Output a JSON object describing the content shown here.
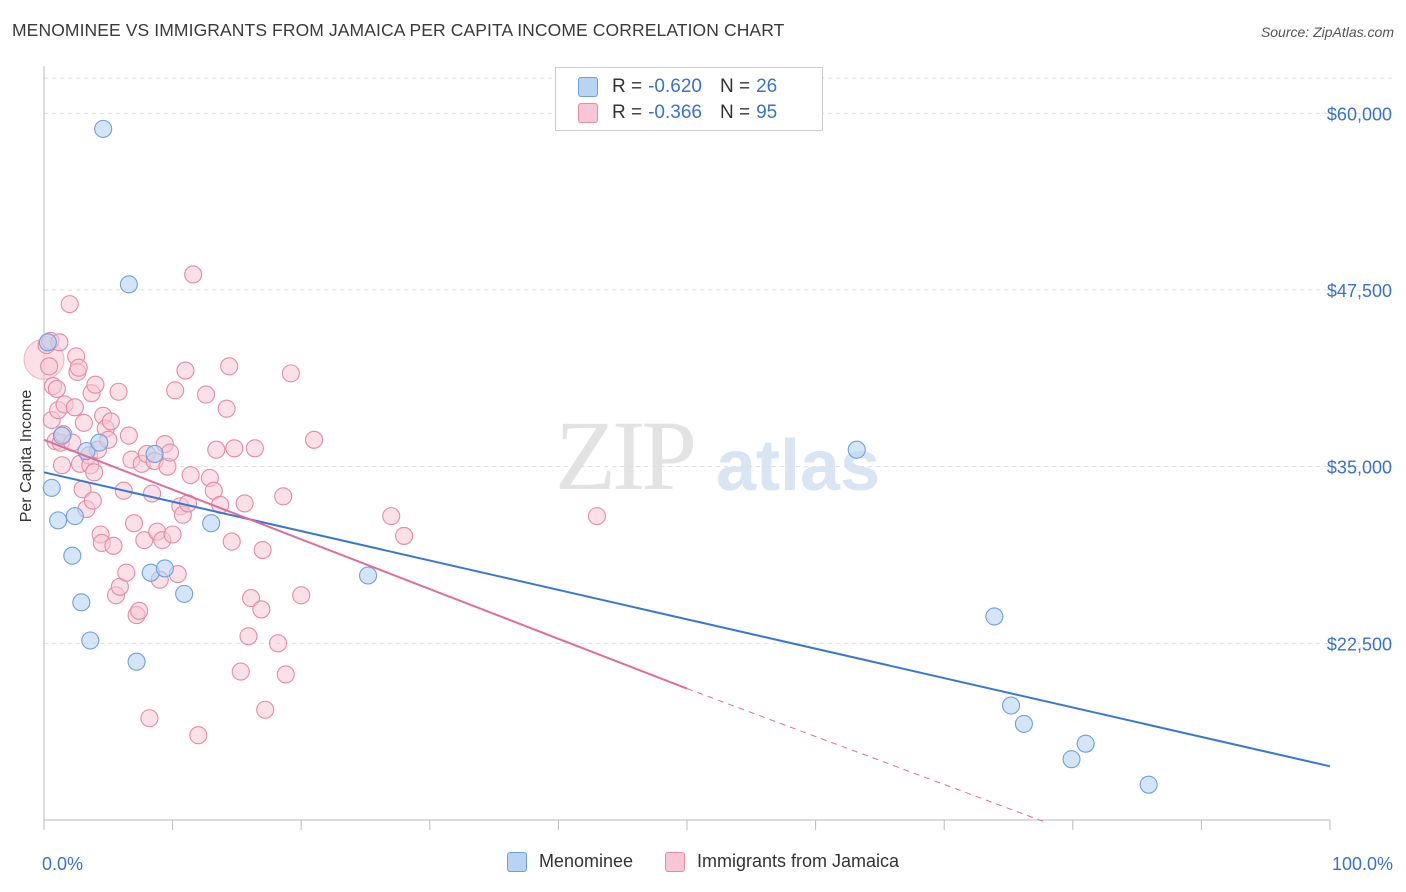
{
  "title": "MENOMINEE VS IMMIGRANTS FROM JAMAICA PER CAPITA INCOME CORRELATION CHART",
  "source": "Source: ZipAtlas.com",
  "watermark": {
    "zip": "ZIP",
    "atlas": "atlas"
  },
  "legend": {
    "rows": [
      {
        "r_label": "R =",
        "r_value": "-0.620",
        "n_label": "N =",
        "n_value": "26"
      },
      {
        "r_label": "R =",
        "r_value": "-0.366",
        "n_label": "N =",
        "n_value": "95"
      }
    ]
  },
  "bottom_legend": {
    "s1": "Menominee",
    "s2": "Immigrants from Jamaica"
  },
  "colors": {
    "blue_fill": "#b8d3f4",
    "blue_stroke": "#6fa0dc",
    "blue_line": "#3a78d0",
    "pink_fill": "#f8c6d4",
    "pink_stroke": "#e68aa6",
    "pink_line": "#e06d98",
    "tick_label": "#3b72c9",
    "grid": "#dddddd"
  },
  "chart_data": {
    "type": "scatter",
    "title": "MENOMINEE VS IMMIGRANTS FROM JAMAICA PER CAPITA INCOME CORRELATION CHART",
    "xlabel": "",
    "ylabel": "Per Capita Income",
    "xlim": [
      0,
      100
    ],
    "ylim": [
      10000,
      62500
    ],
    "x_tick_labels": [
      "0.0%",
      "100.0%"
    ],
    "y_ticks": [
      22500,
      35000,
      47500,
      60000
    ],
    "y_tick_labels": [
      "$22,500",
      "$35,000",
      "$47,500",
      "$60,000"
    ],
    "grid": true,
    "series": [
      {
        "name": "Menominee",
        "points": [
          [
            0.3,
            43800
          ],
          [
            0.6,
            33500
          ],
          [
            1.1,
            31200
          ],
          [
            1.4,
            37200
          ],
          [
            2.2,
            28700
          ],
          [
            2.4,
            31500
          ],
          [
            2.9,
            25400
          ],
          [
            3.3,
            36100
          ],
          [
            3.6,
            22700
          ],
          [
            4.3,
            36700
          ],
          [
            4.6,
            58900
          ],
          [
            6.6,
            47900
          ],
          [
            7.2,
            21200
          ],
          [
            8.3,
            27500
          ],
          [
            8.6,
            35900
          ],
          [
            9.4,
            27800
          ],
          [
            10.9,
            26000
          ],
          [
            13.0,
            31000
          ],
          [
            25.2,
            27300
          ],
          [
            63.2,
            36200
          ],
          [
            73.9,
            24400
          ],
          [
            75.2,
            18100
          ],
          [
            76.2,
            16800
          ],
          [
            79.9,
            14300
          ],
          [
            81.0,
            15400
          ],
          [
            85.9,
            12500
          ]
        ],
        "trend": [
          [
            0,
            34600
          ],
          [
            100,
            13800
          ]
        ]
      },
      {
        "name": "Immigrants from Jamaica",
        "points": [
          [
            0.2,
            43600
          ],
          [
            0.4,
            42100
          ],
          [
            0.5,
            43900
          ],
          [
            0.6,
            38300
          ],
          [
            0.7,
            40700
          ],
          [
            0.9,
            36800
          ],
          [
            1.0,
            40500
          ],
          [
            1.1,
            39000
          ],
          [
            1.2,
            43800
          ],
          [
            1.3,
            36700
          ],
          [
            1.4,
            35100
          ],
          [
            1.5,
            37300
          ],
          [
            1.6,
            39400
          ],
          [
            2.0,
            46500
          ],
          [
            2.2,
            36700
          ],
          [
            2.4,
            39200
          ],
          [
            2.5,
            42800
          ],
          [
            2.6,
            41700
          ],
          [
            2.7,
            42000
          ],
          [
            2.8,
            35200
          ],
          [
            3.0,
            33400
          ],
          [
            3.1,
            38100
          ],
          [
            3.3,
            32000
          ],
          [
            3.5,
            35800
          ],
          [
            3.6,
            35100
          ],
          [
            3.7,
            40200
          ],
          [
            3.8,
            32600
          ],
          [
            3.9,
            34600
          ],
          [
            4.0,
            40800
          ],
          [
            4.2,
            36200
          ],
          [
            4.4,
            30200
          ],
          [
            4.5,
            29600
          ],
          [
            4.6,
            38600
          ],
          [
            4.8,
            37700
          ],
          [
            5.0,
            36900
          ],
          [
            5.2,
            38200
          ],
          [
            5.4,
            29400
          ],
          [
            5.6,
            25900
          ],
          [
            5.8,
            40300
          ],
          [
            5.9,
            26500
          ],
          [
            6.2,
            33300
          ],
          [
            6.4,
            27500
          ],
          [
            6.6,
            37200
          ],
          [
            6.8,
            35500
          ],
          [
            7.0,
            31000
          ],
          [
            7.2,
            24500
          ],
          [
            7.4,
            24800
          ],
          [
            7.6,
            35200
          ],
          [
            7.8,
            29800
          ],
          [
            8.0,
            35900
          ],
          [
            8.2,
            17200
          ],
          [
            8.4,
            33100
          ],
          [
            8.6,
            35400
          ],
          [
            8.8,
            30400
          ],
          [
            9.0,
            27000
          ],
          [
            9.2,
            29800
          ],
          [
            9.4,
            36600
          ],
          [
            9.6,
            35000
          ],
          [
            9.8,
            36000
          ],
          [
            10.0,
            30200
          ],
          [
            10.2,
            40400
          ],
          [
            10.4,
            27400
          ],
          [
            10.6,
            32200
          ],
          [
            10.8,
            31600
          ],
          [
            11.0,
            41800
          ],
          [
            11.2,
            32400
          ],
          [
            11.4,
            34400
          ],
          [
            11.6,
            48600
          ],
          [
            12.0,
            16000
          ],
          [
            12.6,
            40100
          ],
          [
            12.9,
            34200
          ],
          [
            13.2,
            33300
          ],
          [
            13.4,
            36200
          ],
          [
            13.7,
            32300
          ],
          [
            14.2,
            39100
          ],
          [
            14.4,
            42100
          ],
          [
            14.6,
            29700
          ],
          [
            14.8,
            36300
          ],
          [
            15.3,
            20500
          ],
          [
            15.6,
            32400
          ],
          [
            15.9,
            23000
          ],
          [
            16.1,
            25700
          ],
          [
            16.4,
            36300
          ],
          [
            16.9,
            24900
          ],
          [
            17.0,
            29100
          ],
          [
            17.2,
            17800
          ],
          [
            18.2,
            22500
          ],
          [
            18.6,
            32900
          ],
          [
            18.8,
            20300
          ],
          [
            19.2,
            41600
          ],
          [
            20.0,
            25900
          ],
          [
            21.0,
            36900
          ],
          [
            27.0,
            31500
          ],
          [
            43.0,
            31500
          ],
          [
            28.0,
            30100
          ]
        ],
        "trend": [
          [
            0,
            36900
          ],
          [
            50,
            19300
          ]
        ],
        "trend_dashed": [
          [
            50,
            19300
          ],
          [
            78,
            9800
          ]
        ]
      }
    ]
  }
}
